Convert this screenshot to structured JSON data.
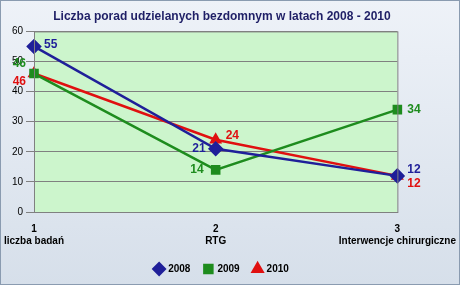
{
  "chart_data": {
    "type": "line",
    "title": "Liczba porad udzielanych bezdomnym w latach 2008 - 2010",
    "x": [
      1,
      2,
      3
    ],
    "categories": [
      "liczba badań",
      "RTG",
      "Interwencje chirurgiczne"
    ],
    "series": [
      {
        "name": "2008",
        "color": "#1f1f99",
        "marker": "diamond",
        "values": [
          55,
          21,
          12
        ]
      },
      {
        "name": "2009",
        "color": "#1e8c1e",
        "marker": "square",
        "values": [
          46,
          14,
          34
        ]
      },
      {
        "name": "2010",
        "color": "#e01010",
        "marker": "triangle",
        "values": [
          46,
          24,
          12
        ]
      }
    ],
    "ylim": [
      0,
      60
    ],
    "yticks": [
      0,
      10,
      20,
      30,
      40,
      50,
      60
    ],
    "grid": true,
    "legend": "bottom",
    "data_labels": true
  }
}
